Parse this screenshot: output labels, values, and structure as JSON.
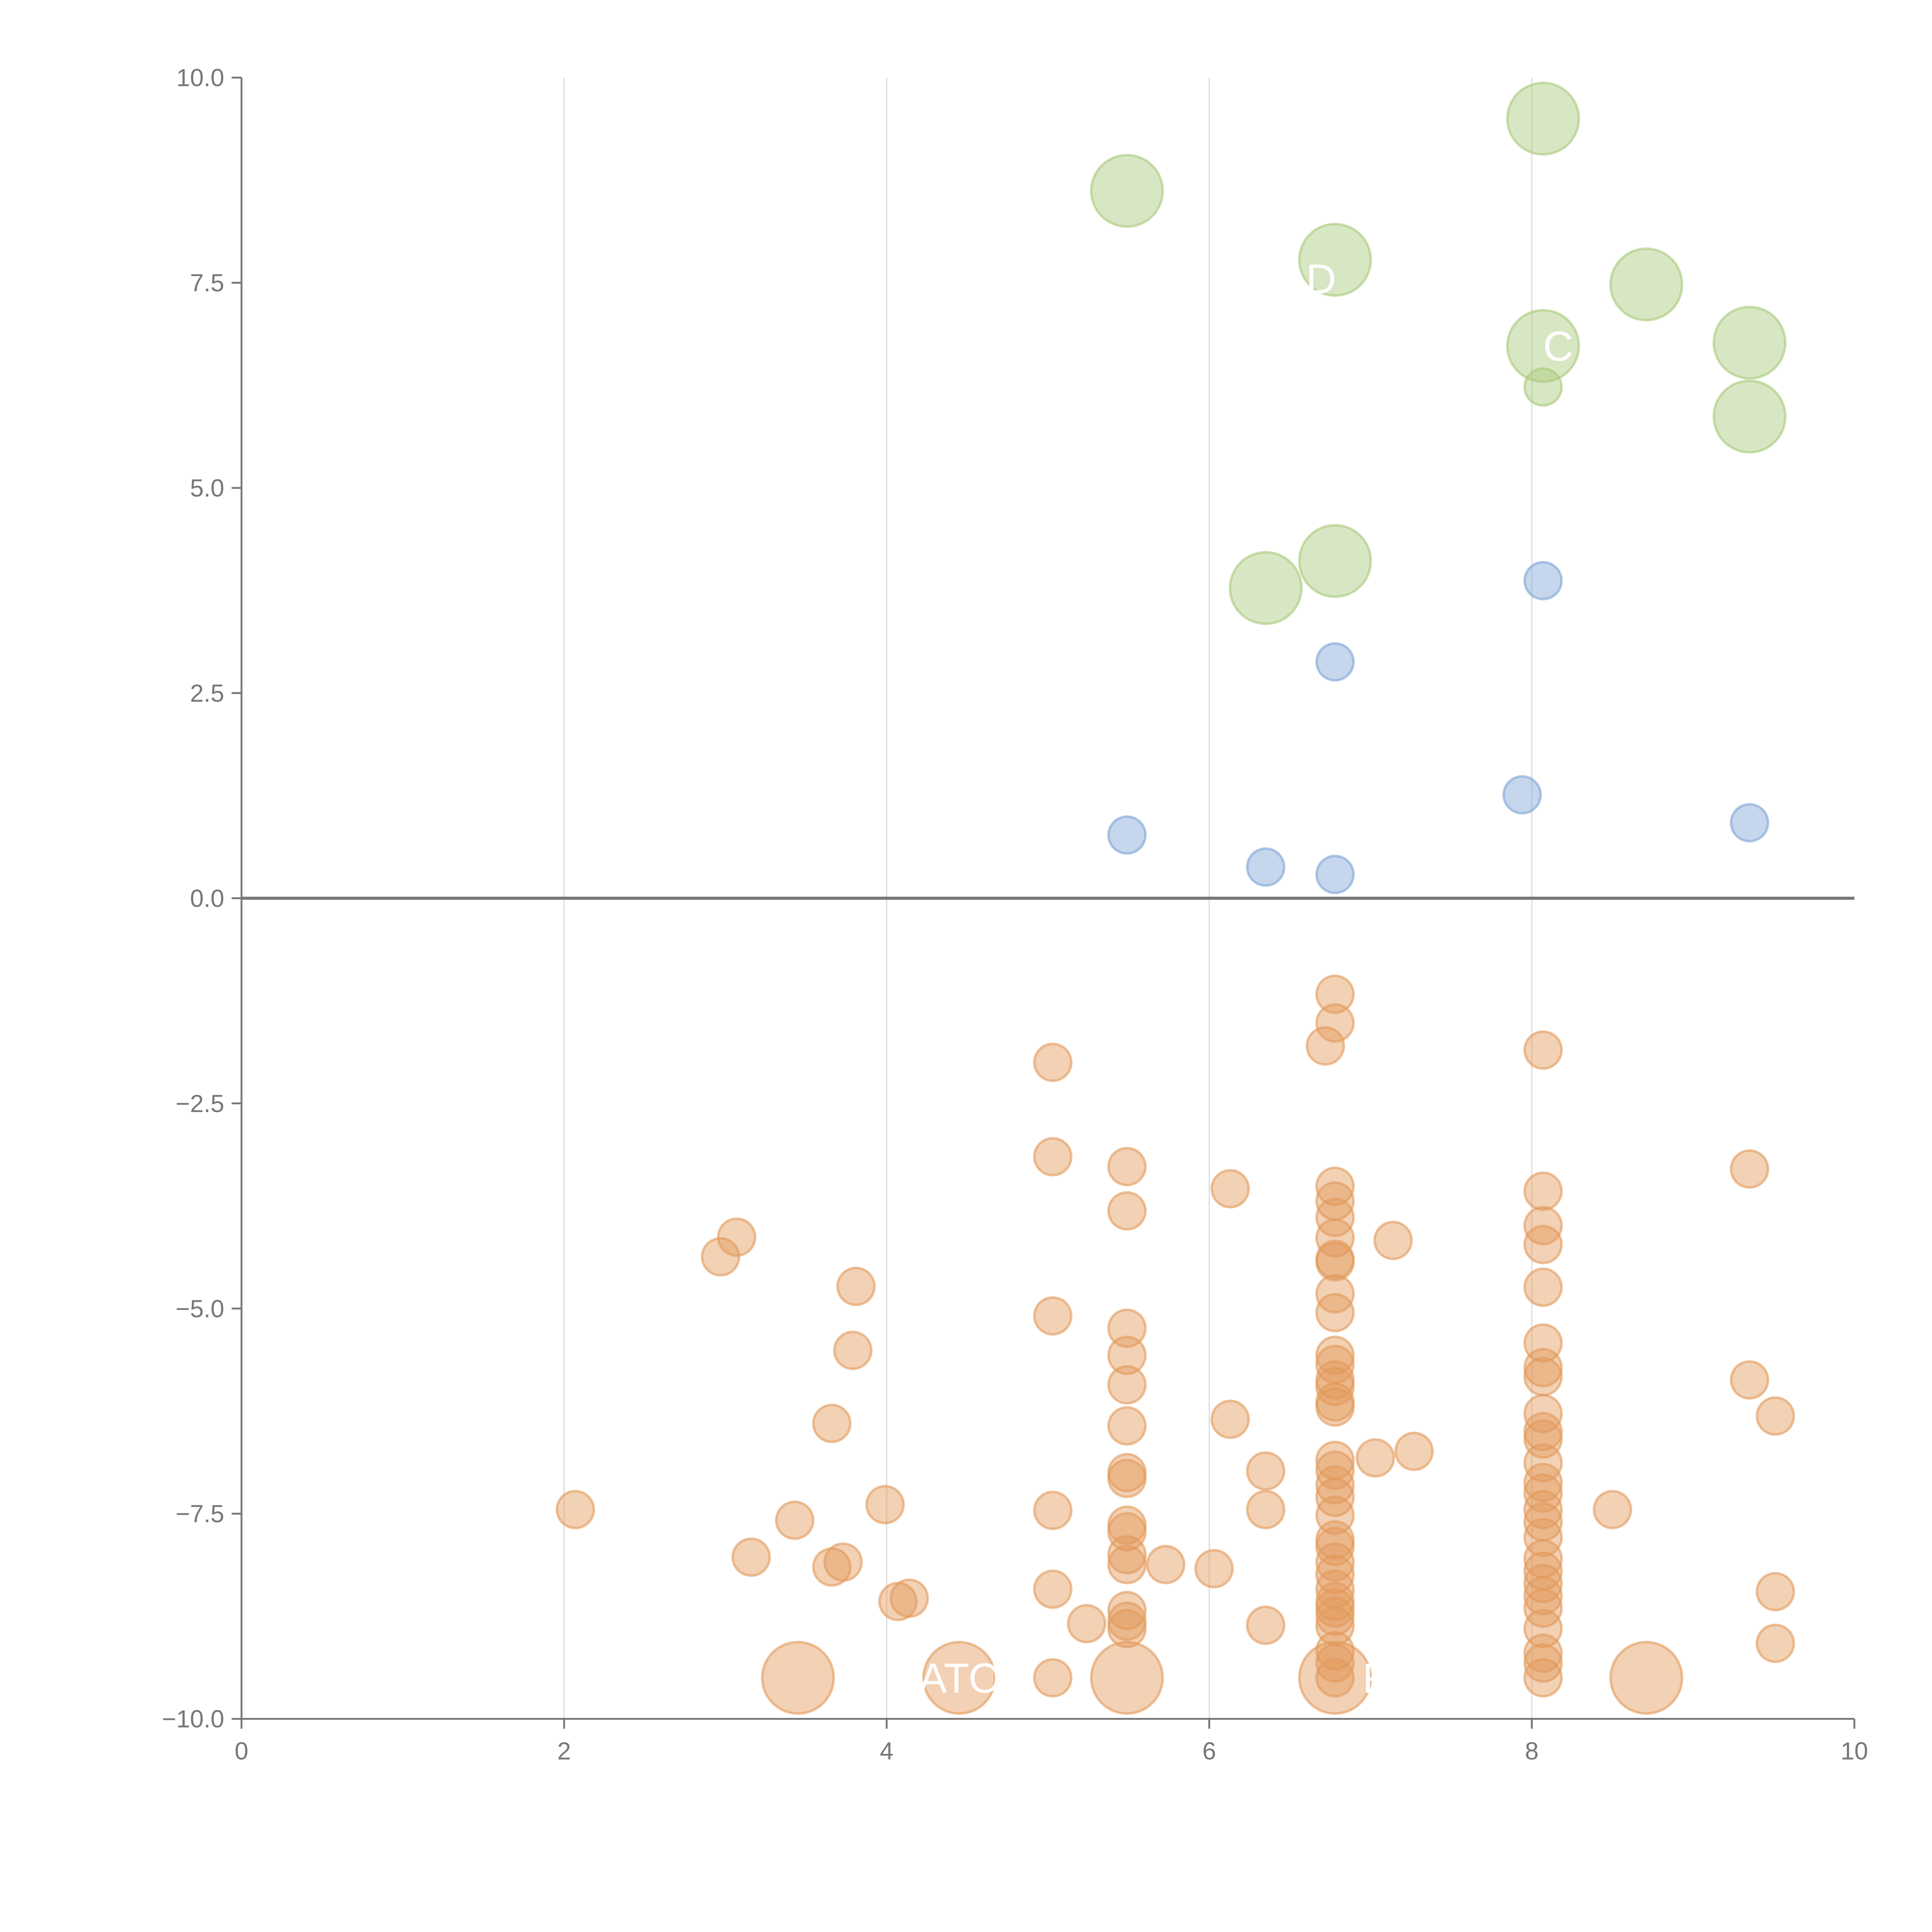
{
  "chart_data": {
    "type": "scatter",
    "title": "",
    "xlabel": "",
    "ylabel": "",
    "xlim": [
      0,
      10
    ],
    "ylim": [
      -10,
      10
    ],
    "xticks": [
      "0",
      "2",
      "4",
      "6",
      "8",
      "10"
    ],
    "yticks": [
      "10.0",
      "7.5",
      "5.0",
      "2.5",
      "0.0",
      "−2.5",
      "−5.0",
      "−7.5",
      "−10.0"
    ],
    "xtick_values": [
      0,
      2,
      4,
      6,
      8,
      10
    ],
    "ytick_values": [
      10,
      7.5,
      5,
      2.5,
      0,
      -2.5,
      -5,
      -7.5,
      -10
    ],
    "grid": "vertical",
    "reference_line_y": 0,
    "colors": {
      "green": "#a8c97a",
      "blue": "#7fa3d6",
      "orange": "#e39a5a",
      "axis": "#777777",
      "grid": "#dddddd"
    },
    "series": [
      {
        "name": "green-large",
        "color": "#a8c97a",
        "size": "large",
        "points": [
          [
            5.49,
            8.62
          ],
          [
            8.07,
            9.5
          ],
          [
            6.78,
            7.78
          ],
          [
            8.71,
            7.48
          ],
          [
            8.07,
            6.73
          ],
          [
            9.35,
            6.77
          ],
          [
            9.35,
            5.87
          ],
          [
            6.78,
            4.11
          ],
          [
            6.35,
            3.78
          ]
        ]
      },
      {
        "name": "green-small",
        "color": "#a8c97a",
        "size": "small",
        "points": [
          [
            8.07,
            6.23
          ]
        ]
      },
      {
        "name": "blue",
        "color": "#7fa3d6",
        "size": "small",
        "points": [
          [
            8.07,
            3.87
          ],
          [
            6.78,
            2.88
          ],
          [
            7.94,
            1.26
          ],
          [
            9.35,
            0.92
          ],
          [
            5.49,
            0.77
          ],
          [
            6.35,
            0.38
          ],
          [
            6.78,
            0.29
          ]
        ]
      },
      {
        "name": "orange-small",
        "color": "#e39a5a",
        "size": "small",
        "points": [
          [
            2.07,
            -7.45
          ],
          [
            2.97,
            -4.37
          ],
          [
            3.07,
            -4.13
          ],
          [
            3.81,
            -4.73
          ],
          [
            3.79,
            -5.51
          ],
          [
            3.66,
            -6.4
          ],
          [
            3.16,
            -8.03
          ],
          [
            3.43,
            -7.58
          ],
          [
            3.66,
            -8.15
          ],
          [
            3.73,
            -8.09
          ],
          [
            3.99,
            -7.39
          ],
          [
            4.07,
            -8.57
          ],
          [
            4.14,
            -8.53
          ],
          [
            5.03,
            -2.0
          ],
          [
            5.03,
            -3.15
          ],
          [
            5.03,
            -5.09
          ],
          [
            5.03,
            -7.46
          ],
          [
            5.03,
            -8.42
          ],
          [
            5.03,
            -9.5
          ],
          [
            5.24,
            -8.84
          ],
          [
            5.49,
            -3.27
          ],
          [
            5.49,
            -3.81
          ],
          [
            5.49,
            -5.24
          ],
          [
            5.49,
            -5.57
          ],
          [
            5.49,
            -5.93
          ],
          [
            5.49,
            -6.43
          ],
          [
            5.49,
            -7.0
          ],
          [
            5.49,
            -7.07
          ],
          [
            5.49,
            -7.64
          ],
          [
            5.49,
            -7.72
          ],
          [
            5.49,
            -8.0
          ],
          [
            5.49,
            -8.12
          ],
          [
            5.49,
            -8.68
          ],
          [
            5.49,
            -8.81
          ],
          [
            5.49,
            -8.9
          ],
          [
            5.73,
            -8.12
          ],
          [
            6.03,
            -8.17
          ],
          [
            6.13,
            -3.54
          ],
          [
            6.13,
            -6.35
          ],
          [
            6.35,
            -6.98
          ],
          [
            6.35,
            -7.45
          ],
          [
            6.35,
            -8.86
          ],
          [
            6.72,
            -1.8
          ],
          [
            6.78,
            -1.17
          ],
          [
            6.78,
            -1.52
          ],
          [
            6.78,
            -3.51
          ],
          [
            6.78,
            -3.69
          ],
          [
            6.78,
            -3.89
          ],
          [
            6.78,
            -4.14
          ],
          [
            6.78,
            -4.4
          ],
          [
            6.78,
            -4.43
          ],
          [
            6.78,
            -4.82
          ],
          [
            6.78,
            -5.05
          ],
          [
            6.78,
            -5.57
          ],
          [
            6.78,
            -5.68
          ],
          [
            6.78,
            -5.87
          ],
          [
            6.78,
            -5.95
          ],
          [
            6.78,
            -6.14
          ],
          [
            6.78,
            -6.2
          ],
          [
            6.78,
            -6.85
          ],
          [
            6.78,
            -6.97
          ],
          [
            6.78,
            -7.15
          ],
          [
            6.78,
            -7.3
          ],
          [
            6.78,
            -7.52
          ],
          [
            6.78,
            -7.82
          ],
          [
            6.78,
            -7.9
          ],
          [
            6.78,
            -8.09
          ],
          [
            6.78,
            -8.24
          ],
          [
            6.78,
            -8.42
          ],
          [
            6.78,
            -8.57
          ],
          [
            6.78,
            -8.65
          ],
          [
            6.78,
            -8.75
          ],
          [
            6.78,
            -8.87
          ],
          [
            6.78,
            -9.17
          ],
          [
            6.78,
            -9.32
          ],
          [
            6.78,
            -9.5
          ],
          [
            7.03,
            -6.82
          ],
          [
            7.27,
            -6.74
          ],
          [
            7.14,
            -4.17
          ],
          [
            8.07,
            -1.85
          ],
          [
            8.07,
            -3.57
          ],
          [
            8.07,
            -3.99
          ],
          [
            8.07,
            -4.22
          ],
          [
            8.07,
            -4.74
          ],
          [
            8.07,
            -5.42
          ],
          [
            8.07,
            -5.72
          ],
          [
            8.07,
            -5.83
          ],
          [
            8.07,
            -6.28
          ],
          [
            8.07,
            -6.5
          ],
          [
            8.07,
            -6.59
          ],
          [
            8.07,
            -6.88
          ],
          [
            8.07,
            -7.12
          ],
          [
            8.07,
            -7.25
          ],
          [
            8.07,
            -7.45
          ],
          [
            8.07,
            -7.6
          ],
          [
            8.07,
            -7.79
          ],
          [
            8.07,
            -8.05
          ],
          [
            8.07,
            -8.2
          ],
          [
            8.07,
            -8.35
          ],
          [
            8.07,
            -8.5
          ],
          [
            8.07,
            -8.65
          ],
          [
            8.07,
            -8.9
          ],
          [
            8.07,
            -9.2
          ],
          [
            8.07,
            -9.32
          ],
          [
            8.07,
            -9.5
          ],
          [
            8.5,
            -7.45
          ],
          [
            9.35,
            -3.3
          ],
          [
            9.35,
            -5.87
          ],
          [
            9.51,
            -6.31
          ],
          [
            9.51,
            -8.45
          ],
          [
            9.51,
            -9.08
          ]
        ]
      },
      {
        "name": "orange-large",
        "color": "#e39a5a",
        "size": "large",
        "points": [
          [
            3.45,
            -9.5
          ],
          [
            4.45,
            -9.5
          ],
          [
            5.49,
            -9.5
          ],
          [
            6.78,
            -9.5
          ],
          [
            8.71,
            -9.5
          ]
        ]
      }
    ],
    "annotations": [
      {
        "text": "ATOM",
        "x": 4.2,
        "y": -9.5
      },
      {
        "text": "C",
        "x": 8.07,
        "y": 6.73
      },
      {
        "text": "D",
        "x": 6.6,
        "y": 7.55
      },
      {
        "text": "K",
        "x": 6.95,
        "y": -9.5
      }
    ]
  }
}
